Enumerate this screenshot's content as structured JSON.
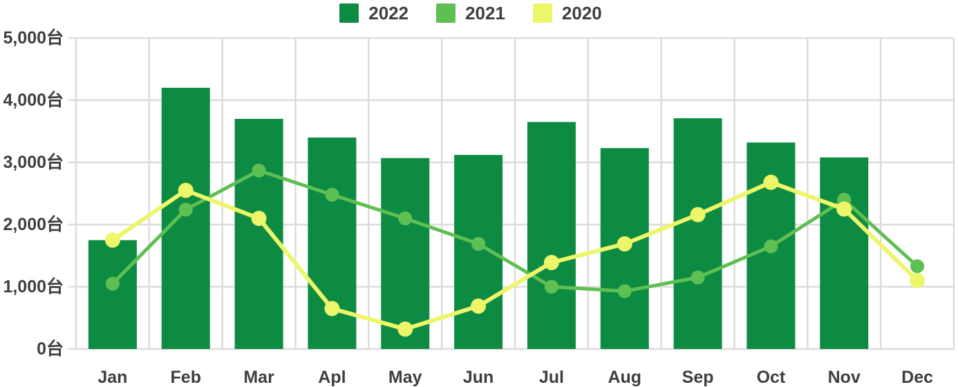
{
  "page": {
    "background": "#ffffff",
    "text_color": "#3f3f3f",
    "grid_color": "#dcdcdc"
  },
  "legend": {
    "items": [
      {
        "label": "2022",
        "color": "#0e8b43"
      },
      {
        "label": "2021",
        "color": "#5ebf52"
      },
      {
        "label": "2020",
        "color": "#edf669"
      }
    ]
  },
  "chart_data": {
    "type": "bar",
    "subtype": "bar-and-line-combo",
    "title": "",
    "xlabel": "",
    "ylabel": "",
    "unit_suffix": "台",
    "categories": [
      "Jan",
      "Feb",
      "Mar",
      "Apl",
      "May",
      "Jun",
      "Jul",
      "Aug",
      "Sep",
      "Oct",
      "Nov",
      "Dec"
    ],
    "series": [
      {
        "name": "2022",
        "type": "bar",
        "color": "#0e8b43",
        "values": [
          1750,
          4200,
          3700,
          3400,
          3070,
          3120,
          3650,
          3230,
          3710,
          3320,
          3080,
          null
        ]
      },
      {
        "name": "2021",
        "type": "line",
        "color": "#5ebf52",
        "values": [
          1050,
          2240,
          2870,
          2480,
          2100,
          1690,
          1000,
          930,
          1150,
          1650,
          2400,
          1330
        ]
      },
      {
        "name": "2020",
        "type": "line",
        "color": "#edf669",
        "values": [
          1750,
          2550,
          2100,
          650,
          320,
          690,
          1390,
          1690,
          2160,
          2680,
          2250,
          1100
        ]
      }
    ],
    "ylim": [
      0,
      5000
    ],
    "ytick_values": [
      0,
      1000,
      2000,
      3000,
      4000,
      5000
    ],
    "ytick_labels": [
      "0台",
      "1,000台",
      "2,000台",
      "3,000台",
      "4,000台",
      "5,000台"
    ],
    "grid": true,
    "legend_position": "top-center"
  }
}
